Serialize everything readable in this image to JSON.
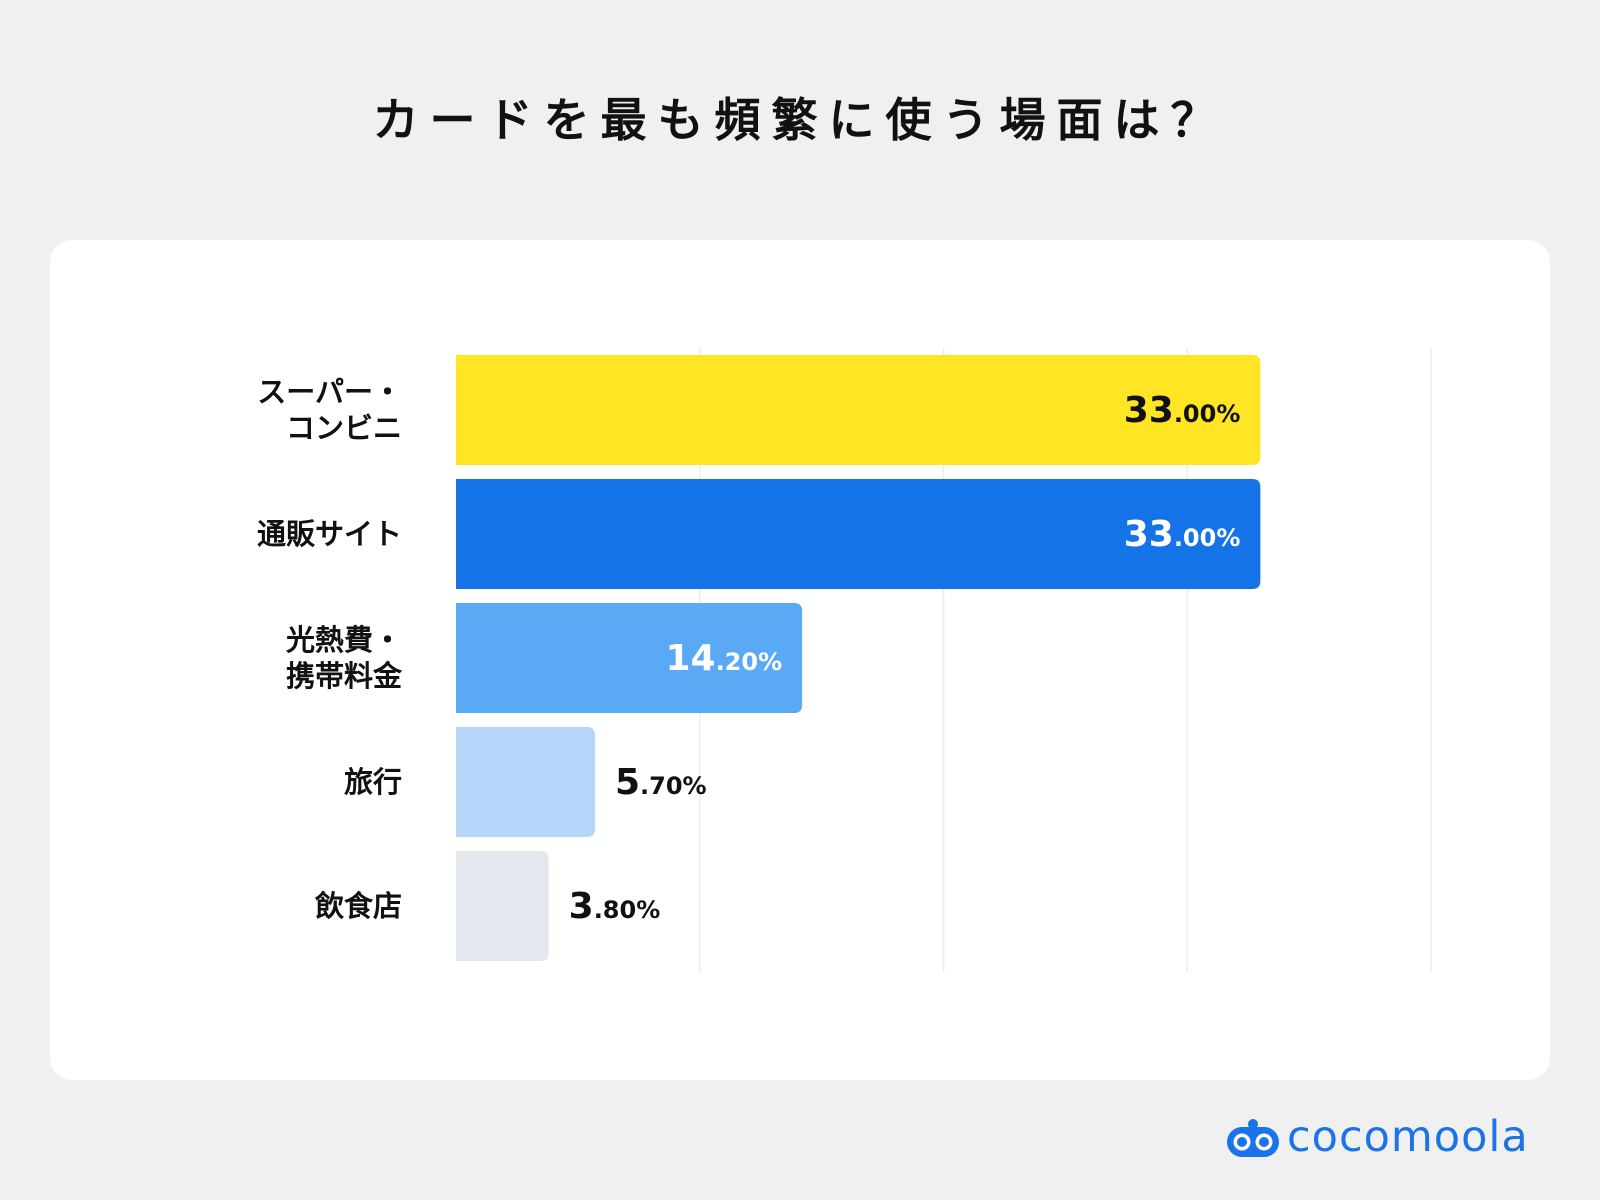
{
  "title": "カードを最も頻繁に使う場面は？",
  "brand": {
    "name": "cocomoola",
    "color": "#1a73e8"
  },
  "chart_data": {
    "type": "bar",
    "orientation": "horizontal",
    "title": "カードを最も頻繁に使う場面は？",
    "categories": [
      [
        "スーパー・",
        "コンビニ"
      ],
      [
        "通販サイト"
      ],
      [
        "光熱費・",
        "携帯料金"
      ],
      [
        "旅行"
      ],
      [
        "飲食店"
      ]
    ],
    "values": [
      33.0,
      33.0,
      14.2,
      5.7,
      3.8
    ],
    "value_labels": [
      {
        "int": "33",
        "dec": ".00%"
      },
      {
        "int": "33",
        "dec": ".00%"
      },
      {
        "int": "14",
        "dec": ".20%"
      },
      {
        "int": "5",
        "dec": ".70%"
      },
      {
        "int": "3",
        "dec": ".80%"
      }
    ],
    "colors": [
      "#ffe524",
      "#1473e6",
      "#5aa9f4",
      "#b5d6f9",
      "#e3e8ef"
    ],
    "label_colors": [
      "#111111",
      "#ffffff",
      "#ffffff",
      "#111111",
      "#111111"
    ],
    "label_inside": [
      true,
      true,
      true,
      false,
      false
    ],
    "xlim": [
      0,
      40
    ],
    "grid": true,
    "unit": "%"
  }
}
